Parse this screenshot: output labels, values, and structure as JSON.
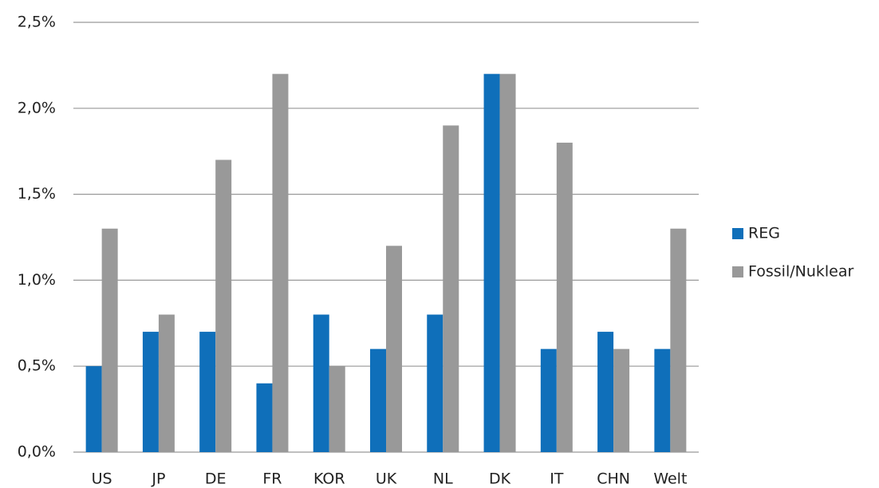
{
  "chart_data": {
    "type": "bar",
    "categories": [
      "US",
      "JP",
      "DE",
      "FR",
      "KOR",
      "UK",
      "NL",
      "DK",
      "IT",
      "CHN",
      "Welt"
    ],
    "series": [
      {
        "name": "REG",
        "color": "#0f6fba",
        "values": [
          0.5,
          0.7,
          0.7,
          0.4,
          0.8,
          0.6,
          0.8,
          2.2,
          0.6,
          0.7,
          0.6
        ]
      },
      {
        "name": "Fossil/Nuklear",
        "color": "#999999",
        "values": [
          1.3,
          0.8,
          1.7,
          2.2,
          0.5,
          1.2,
          1.9,
          2.2,
          1.8,
          0.6,
          1.3
        ]
      }
    ],
    "ylim": [
      0,
      2.5
    ],
    "yticks": [
      {
        "value": 0,
        "label": "0,0%"
      },
      {
        "value": 0.5,
        "label": "0,5%"
      },
      {
        "value": 1,
        "label": "1,0%"
      },
      {
        "value": 1.5,
        "label": "1,5%"
      },
      {
        "value": 2,
        "label": "2,0%"
      },
      {
        "value": 2.5,
        "label": "2,5%"
      }
    ],
    "grid": true,
    "legend": "right"
  }
}
